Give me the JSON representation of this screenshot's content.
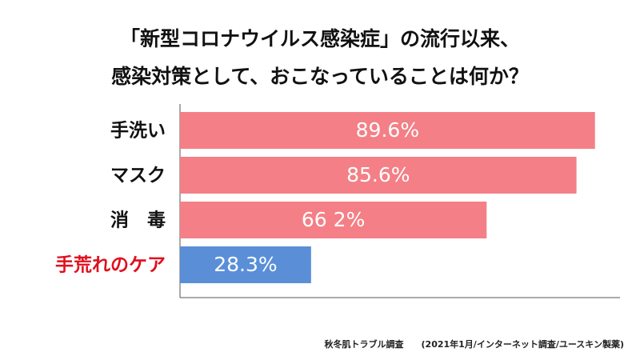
{
  "chart_data": {
    "type": "hbar",
    "title": [
      "「新型コロナウイルス感染症」の流行以来、",
      "感染対策として、おこなっていることは何か？"
    ],
    "categories": [
      "手洗い",
      "マスク",
      "消　毒",
      "手荒れのケア"
    ],
    "values": [
      89.6,
      85.6,
      66.2,
      28.3
    ],
    "value_labels": [
      "89.6%",
      "85.6%",
      "66 2%",
      "28.3%"
    ],
    "colors": [
      "#f47f86",
      "#f47f86",
      "#f47f86",
      "#5a8fd8"
    ],
    "category_colors": [
      "#111111",
      "#111111",
      "#111111",
      "#e0101e"
    ],
    "xlim": [
      0,
      95
    ],
    "source": "秋冬肌トラブル調査　　(2021年1月/インターネット調査/ユースキン製薬)"
  }
}
